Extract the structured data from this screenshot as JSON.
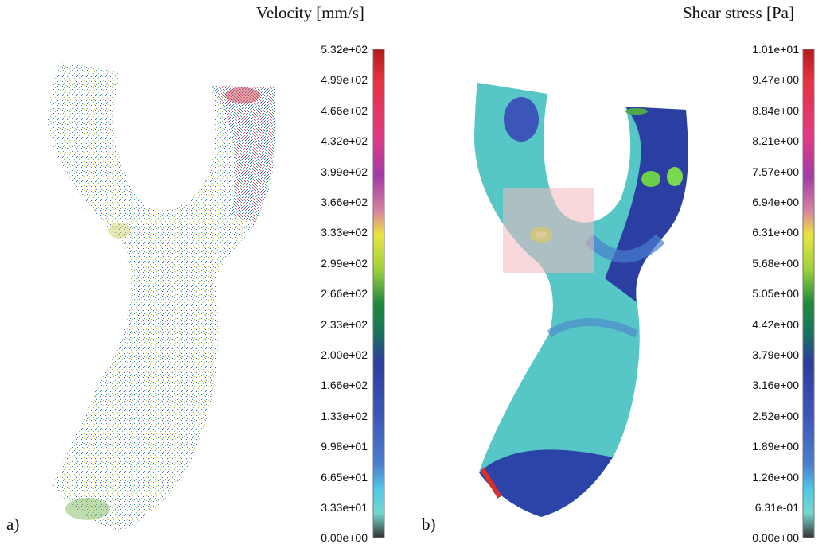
{
  "panels": [
    {
      "title": "Velocity [mm/s]",
      "label": "a)",
      "ticks": [
        "5.32e+02",
        "4.99e+02",
        "4.66e+02",
        "4.32e+02",
        "3.99e+02",
        "3.66e+02",
        "3.33e+02",
        "2.99e+02",
        "2.66e+02",
        "2.33e+02",
        "2.00e+02",
        "1.66e+02",
        "1.33e+02",
        "9.98e+01",
        "6.65e+01",
        "3.33e+01",
        "0.00e+00"
      ]
    },
    {
      "title": "Shear stress [Pa]",
      "label": "b)",
      "ticks": [
        "1.01e+01",
        "9.47e+00",
        "8.84e+00",
        "8.21e+00",
        "7.57e+00",
        "6.94e+00",
        "6.31e+00",
        "5.68e+00",
        "5.05e+00",
        "4.42e+00",
        "3.79e+00",
        "3.16e+00",
        "2.52e+00",
        "1.89e+00",
        "1.26e+00",
        "6.31e-01",
        "0.00e+00"
      ]
    }
  ],
  "colormap": [
    "#c81e1e",
    "#e8303c",
    "#e33a86",
    "#c03ab0",
    "#9a3ca8",
    "#d56a8c",
    "#e8e23a",
    "#9fd23c",
    "#2f9a3a",
    "#1b7e56",
    "#2b3d9e",
    "#2c44a8",
    "#3b56b8",
    "#4a74cc",
    "#4fc3e8",
    "#6fd3cf",
    "#3b3b3b"
  ]
}
